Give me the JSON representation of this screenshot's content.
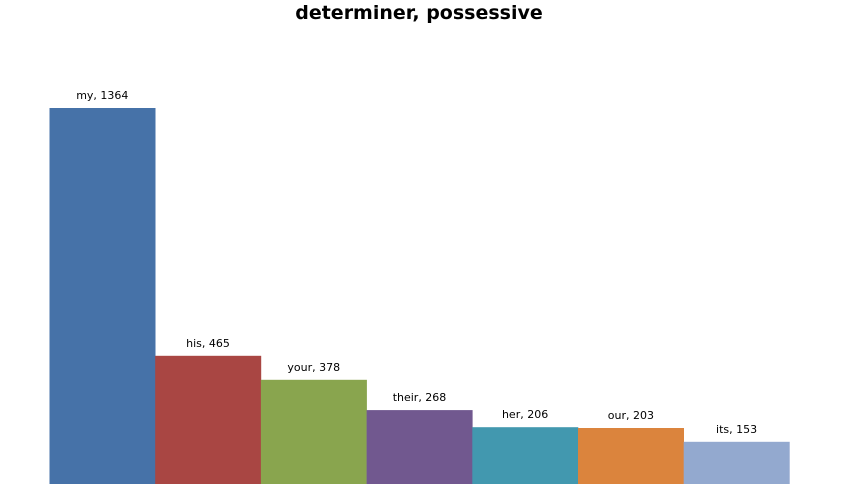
{
  "chart_data": {
    "type": "bar",
    "title": "determiner, possessive",
    "categories": [
      "my",
      "his",
      "your",
      "their",
      "her",
      "our",
      "its"
    ],
    "values": [
      1364,
      465,
      378,
      268,
      206,
      203,
      153
    ],
    "data_labels": [
      "my, 1364",
      "his, 465",
      "your, 378",
      "their, 268",
      "her, 206",
      "our, 203",
      "its, 153"
    ],
    "colors": [
      "#4672A8",
      "#A94643",
      "#89A54E",
      "#71588F",
      "#4298AF",
      "#DB843D",
      "#93A9CF"
    ],
    "xlabel": "",
    "ylabel": "",
    "ylim": [
      0,
      1364
    ],
    "grid": false,
    "legend": "none"
  }
}
